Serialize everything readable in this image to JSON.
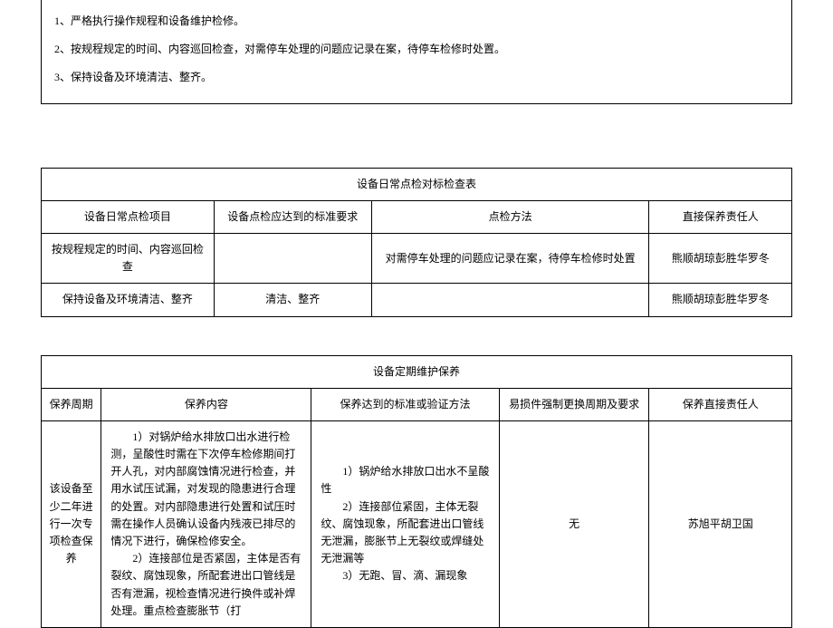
{
  "top_box": {
    "line1": "1、严格执行操作规程和设备维护检修。",
    "line2": "2、按规程规定的时间、内容巡回检查，对需停车处理的问题应记录在案，待停车检修时处置。",
    "line3": "3、保持设备及环境清洁、整齐。"
  },
  "table1": {
    "title": "设备日常点检对标检查表",
    "headers": {
      "h1": "设备日常点检项目",
      "h2": "设备点检应达到的标准要求",
      "h3": "点检方法",
      "h4": "直接保养责任人"
    },
    "rows": [
      {
        "c1": "按规程规定的时间、内容巡回检查",
        "c2": "",
        "c3": "对需停车处理的问题应记录在案，待停车检修时处置",
        "c4": "熊顺胡琼彭胜华罗冬"
      },
      {
        "c1": "保持设备及环境清洁、整齐",
        "c2": "清洁、整齐",
        "c3": "",
        "c4": "熊顺胡琼彭胜华罗冬"
      }
    ]
  },
  "table2": {
    "title": "设备定期维护保养",
    "headers": {
      "h1": "保养周期",
      "h2": "保养内容",
      "h3": "保养达到的标准或验证方法",
      "h4": "易损件强制更换周期及要求",
      "h5": "保养直接责任人"
    },
    "row": {
      "c1": "该设备至少二年进行一次专项检查保养",
      "c2_p1": "1）对锅炉给水排放口出水进行检测，呈酸性时需在下次停车检修期间打开人孔，对内部腐蚀情况进行检查，并用水试压试漏，对发现的隐患进行合理的处置。对内部隐患进行处置和试压时需在操作人员确认设备内残液已排尽的情况下进行，确保检修安全。",
      "c2_p2": "2）连接部位是否紧固，主体是否有裂纹、腐蚀现象，所配套进出口管线是否有泄漏，视检查情况进行换件或补焊处理。重点检查膨胀节（打",
      "c3_p1": "1）锅炉给水排放口出水不呈酸性",
      "c3_p2": "2）连接部位紧固，主体无裂纹、腐蚀现象，所配套进出口管线无泄漏，膨胀节上无裂纹或焊缝处无泄漏等",
      "c3_p3": "3）无跑、冒、滴、漏现象",
      "c4": "无",
      "c5": "苏旭平胡卫国"
    }
  }
}
